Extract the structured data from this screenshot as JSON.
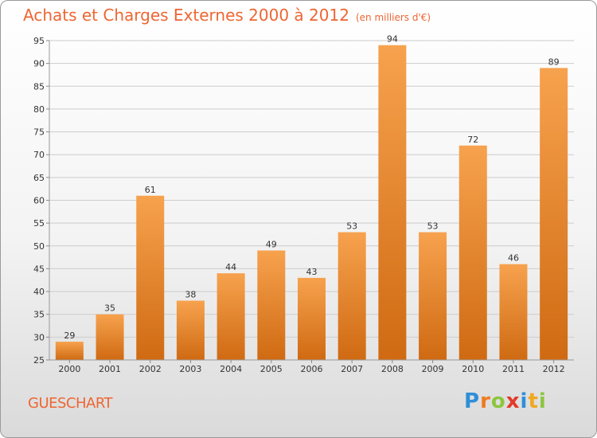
{
  "header": {
    "title": "Achats et Charges Externes 2000 à 2012",
    "unit_note": "(en milliers d'€)"
  },
  "footer": {
    "commune": "GUESCHART",
    "brand_letters": [
      {
        "ch": "P",
        "color": "#2f8fd8"
      },
      {
        "ch": "r",
        "color": "#f07a1e"
      },
      {
        "ch": "o",
        "color": "#8cc63f"
      },
      {
        "ch": "x",
        "color": "#e23a2a"
      },
      {
        "ch": "i",
        "color": "#2f8fd8"
      },
      {
        "ch": "t",
        "color": "#f0a81e"
      },
      {
        "ch": "i",
        "color": "#8cc63f"
      }
    ]
  },
  "colors": {
    "bar_top": "#f7a24e",
    "bar_bottom": "#cf6a12",
    "title": "#ee6633",
    "grid": "#cccccc"
  },
  "chart_data": {
    "type": "bar",
    "title": "Achats et Charges Externes 2000 à 2012",
    "subtitle": "(en milliers d'€)",
    "xlabel": "",
    "ylabel": "",
    "categories": [
      "2000",
      "2001",
      "2002",
      "2003",
      "2004",
      "2005",
      "2006",
      "2007",
      "2008",
      "2009",
      "2010",
      "2011",
      "2012"
    ],
    "values": [
      29,
      35,
      61,
      38,
      44,
      49,
      43,
      53,
      94,
      53,
      72,
      46,
      89
    ],
    "ylim": [
      25,
      95
    ],
    "yticks": [
      25,
      30,
      35,
      40,
      45,
      50,
      55,
      60,
      65,
      70,
      75,
      80,
      85,
      90,
      95
    ],
    "grid": true,
    "data_labels": true
  }
}
